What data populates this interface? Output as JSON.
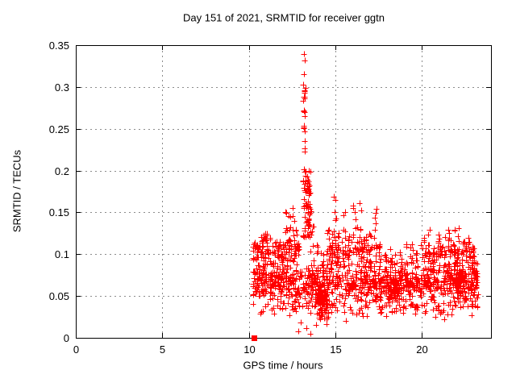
{
  "window": {
    "background": "#ffffff"
  },
  "chart_data": {
    "type": "scatter",
    "title": "Day 151 of 2021, SRMTID for receiver ggtn",
    "xlabel": "GPS time / hours",
    "ylabel": "SRMTID / TECUs",
    "xlim": [
      0,
      24
    ],
    "ylim": [
      0,
      0.35
    ],
    "xticks": [
      0,
      5,
      10,
      15,
      20
    ],
    "xtick_labels": [
      "0",
      "5",
      "10",
      "15",
      "20"
    ],
    "yticks": [
      0,
      0.05,
      0.1,
      0.15,
      0.2,
      0.25,
      0.3,
      0.35
    ],
    "ytick_labels": [
      "0",
      "0.05",
      "0.1",
      "0.15",
      "0.2",
      "0.25",
      "0.3",
      "0.35"
    ],
    "grid": true,
    "grid_style": "dashed",
    "grid_color": "#8c8c8c",
    "border_color": "#000000",
    "marker": "plus",
    "marker_size": 7,
    "marker_color": "#ff0000",
    "data_x_start": 10.2,
    "data_x_end": 23.3,
    "peak": {
      "x": 13.2,
      "y": 0.34
    },
    "square_marker_point": [
      10.28,
      0.0
    ],
    "seed": 151,
    "extra_points": [
      [
        13.18,
        0.339
      ],
      [
        13.23,
        0.332
      ],
      [
        13.2,
        0.315
      ],
      [
        13.16,
        0.303
      ],
      [
        13.25,
        0.295
      ],
      [
        13.19,
        0.288
      ],
      [
        13.22,
        0.27
      ],
      [
        13.17,
        0.252
      ],
      [
        12.85,
        0.008
      ],
      [
        13.02,
        0.018
      ],
      [
        13.35,
        0.012
      ],
      [
        13.55,
        0.005
      ],
      [
        13.9,
        0.015
      ],
      [
        14.12,
        0.022
      ],
      [
        14.5,
        0.016
      ],
      [
        15.62,
        0.02
      ],
      [
        16.2,
        0.028
      ],
      [
        18.9,
        0.03
      ],
      [
        21.3,
        0.022
      ],
      [
        22.9,
        0.027
      ]
    ],
    "bands": [
      {
        "x0": 10.2,
        "x1": 23.3,
        "n": 520,
        "ymin": 0.035,
        "ymax": 0.095
      },
      {
        "x0": 10.25,
        "x1": 23.25,
        "n": 260,
        "ymin": 0.05,
        "ymax": 0.08
      },
      {
        "x0": 10.3,
        "x1": 23.2,
        "n": 140,
        "ymin": 0.025,
        "ymax": 0.05
      },
      {
        "x0": 10.3,
        "x1": 13.0,
        "n": 70,
        "ymin": 0.09,
        "ymax": 0.125
      },
      {
        "x0": 14.6,
        "x1": 17.4,
        "n": 55,
        "ymin": 0.09,
        "ymax": 0.12
      },
      {
        "x0": 19.9,
        "x1": 23.1,
        "n": 60,
        "ymin": 0.09,
        "ymax": 0.115
      },
      {
        "x0": 13.9,
        "x1": 14.6,
        "n": 30,
        "ymin": 0.015,
        "ymax": 0.05
      },
      {
        "x0": 14.0,
        "x1": 14.5,
        "n": 55,
        "ymin": 0.035,
        "ymax": 0.06
      },
      {
        "x0": 18.0,
        "x1": 18.6,
        "n": 45,
        "ymin": 0.04,
        "ymax": 0.07
      },
      {
        "x0": 21.9,
        "x1": 22.3,
        "n": 45,
        "ymin": 0.045,
        "ymax": 0.095
      }
    ],
    "spikes": [
      {
        "x": 13.2,
        "w": 0.14,
        "n": 34,
        "ymin": 0.12,
        "ymax": 0.312,
        "pow": 1.1
      },
      {
        "x": 13.4,
        "w": 0.3,
        "n": 55,
        "ymin": 0.115,
        "ymax": 0.2,
        "pow": 1.0
      }
    ],
    "columns": [
      {
        "x": 10.3,
        "top": 0.118
      },
      {
        "x": 10.55,
        "top": 0.112
      },
      {
        "x": 10.8,
        "top": 0.125
      },
      {
        "x": 11.0,
        "top": 0.138
      },
      {
        "x": 11.2,
        "top": 0.122
      },
      {
        "x": 11.45,
        "top": 0.105
      },
      {
        "x": 11.7,
        "top": 0.128
      },
      {
        "x": 11.95,
        "top": 0.118
      },
      {
        "x": 12.15,
        "top": 0.152
      },
      {
        "x": 12.35,
        "top": 0.149
      },
      {
        "x": 12.55,
        "top": 0.156
      },
      {
        "x": 12.75,
        "top": 0.132
      },
      {
        "x": 13.55,
        "top": 0.178
      },
      {
        "x": 13.7,
        "top": 0.135
      },
      {
        "x": 13.95,
        "top": 0.112
      },
      {
        "x": 14.25,
        "top": 0.103
      },
      {
        "x": 14.55,
        "top": 0.132
      },
      {
        "x": 14.78,
        "top": 0.142
      },
      {
        "x": 14.97,
        "top": 0.172
      },
      {
        "x": 15.15,
        "top": 0.148
      },
      {
        "x": 15.5,
        "top": 0.157
      },
      {
        "x": 15.75,
        "top": 0.122
      },
      {
        "x": 16.0,
        "top": 0.178
      },
      {
        "x": 16.2,
        "top": 0.162
      },
      {
        "x": 16.45,
        "top": 0.168
      },
      {
        "x": 16.7,
        "top": 0.123
      },
      {
        "x": 17.0,
        "top": 0.133
      },
      {
        "x": 17.3,
        "top": 0.156
      },
      {
        "x": 17.6,
        "top": 0.112
      },
      {
        "x": 17.9,
        "top": 0.103
      },
      {
        "x": 18.2,
        "top": 0.107
      },
      {
        "x": 18.5,
        "top": 0.102
      },
      {
        "x": 18.8,
        "top": 0.107
      },
      {
        "x": 19.1,
        "top": 0.117
      },
      {
        "x": 19.4,
        "top": 0.116
      },
      {
        "x": 19.7,
        "top": 0.103
      },
      {
        "x": 20.1,
        "top": 0.122
      },
      {
        "x": 20.4,
        "top": 0.131
      },
      {
        "x": 20.7,
        "top": 0.117
      },
      {
        "x": 21.0,
        "top": 0.127
      },
      {
        "x": 21.3,
        "top": 0.121
      },
      {
        "x": 21.6,
        "top": 0.136
      },
      {
        "x": 21.9,
        "top": 0.137
      },
      {
        "x": 22.1,
        "top": 0.132
      },
      {
        "x": 22.4,
        "top": 0.122
      },
      {
        "x": 22.7,
        "top": 0.121
      },
      {
        "x": 22.95,
        "top": 0.112
      },
      {
        "x": 23.15,
        "top": 0.096
      }
    ]
  }
}
